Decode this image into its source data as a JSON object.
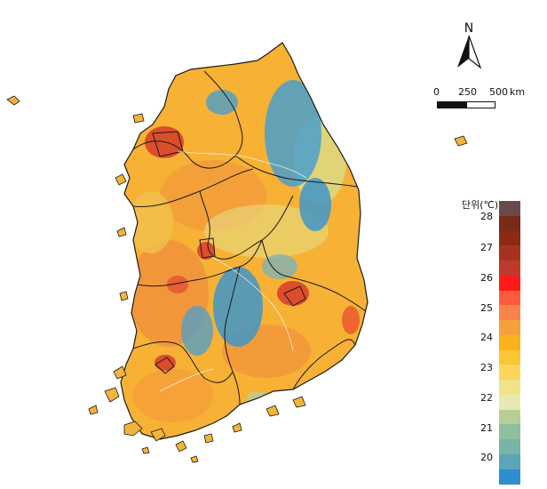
{
  "north_label": "N",
  "scale": {
    "labels": [
      "0",
      "250",
      "500"
    ],
    "unit": "km"
  },
  "legend": {
    "title": "단위(℃)",
    "tick_labels": [
      "28",
      "27",
      "26",
      "25",
      "24",
      "23",
      "22",
      "21",
      "20"
    ],
    "colors": [
      "#6b4a4e",
      "#7a2a18",
      "#8e2a14",
      "#a83222",
      "#c0392b",
      "#ff1a1a",
      "#ff5a3a",
      "#f7834a",
      "#f7a03a",
      "#f9b21a",
      "#fbc634",
      "#fbd65a",
      "#f2e28a",
      "#e6eab0",
      "#b7cf95",
      "#8fbf9c",
      "#78b4a8",
      "#5aa6b8",
      "#2e8fcf"
    ]
  }
}
